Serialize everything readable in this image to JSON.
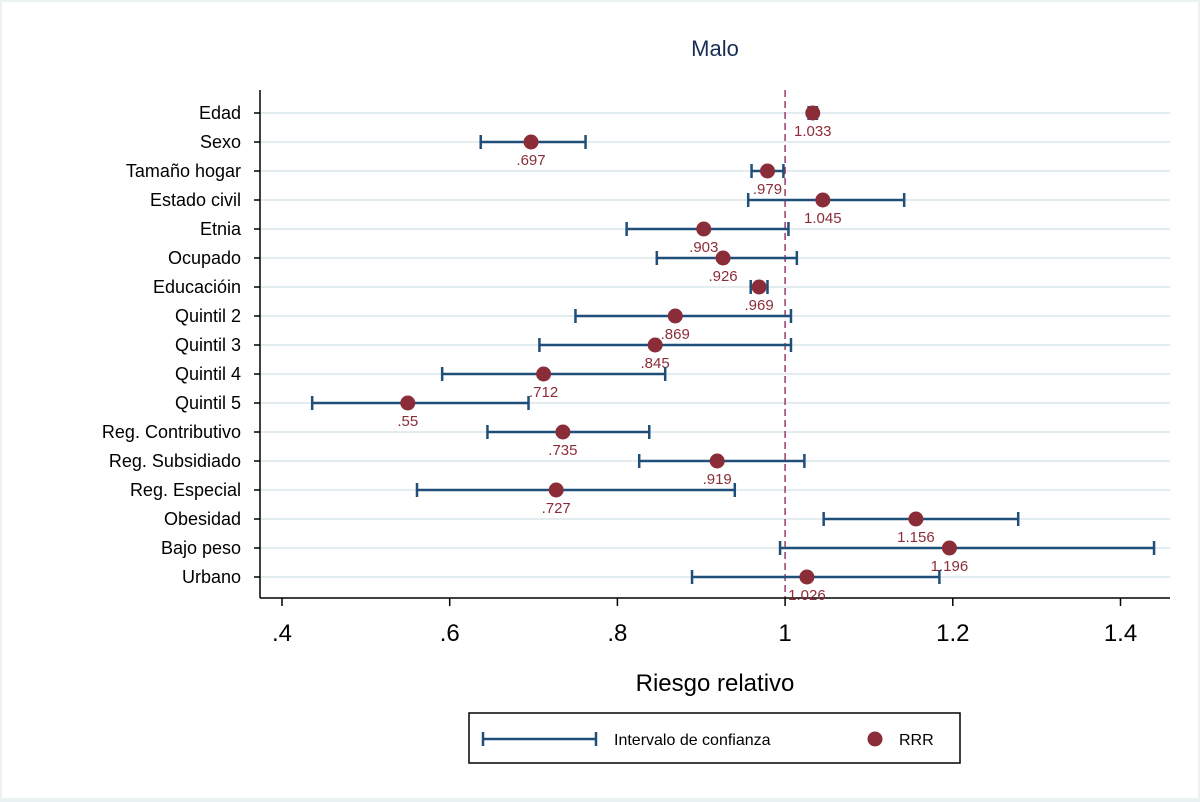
{
  "chart_data": {
    "type": "scatter",
    "title": "Malo",
    "xlabel": "Riesgo relativo",
    "ylabel": "",
    "xlim": [
      0.39,
      1.45
    ],
    "xticks": [
      0.4,
      0.6,
      0.8,
      1.0,
      1.2,
      1.4
    ],
    "xtick_labels": [
      ".4",
      ".6",
      ".8",
      "1",
      "1.2",
      "1.4"
    ],
    "reference_line": 1,
    "grid": "horizontal",
    "legend_position": "bottom",
    "legend": [
      "Intervalo de confianza",
      "RRR"
    ],
    "colors": {
      "ci": "#1f4e79",
      "point": "#8b2d38",
      "reference": "#9b3a6e",
      "grid": "#e3ecee",
      "title": "#1a2e55"
    },
    "rows": [
      {
        "label": "Edad",
        "rrr": 1.033,
        "rrr_label": "1.033",
        "ci": [
          1.028,
          1.038
        ]
      },
      {
        "label": "Sexo",
        "rrr": 0.697,
        "rrr_label": ".697",
        "ci": [
          0.637,
          0.762
        ]
      },
      {
        "label": "Tamaño hogar",
        "rrr": 0.979,
        "rrr_label": ".979",
        "ci": [
          0.96,
          0.998
        ]
      },
      {
        "label": "Estado civil",
        "rrr": 1.045,
        "rrr_label": "1.045",
        "ci": [
          0.956,
          1.142
        ]
      },
      {
        "label": "Etnia",
        "rrr": 0.903,
        "rrr_label": ".903",
        "ci": [
          0.811,
          1.004
        ]
      },
      {
        "label": "Ocupado",
        "rrr": 0.926,
        "rrr_label": ".926",
        "ci": [
          0.847,
          1.014
        ]
      },
      {
        "label": "Educacióin",
        "rrr": 0.969,
        "rrr_label": ".969",
        "ci": [
          0.959,
          0.979
        ]
      },
      {
        "label": "Quintil 2",
        "rrr": 0.869,
        "rrr_label": ".869",
        "ci": [
          0.75,
          1.007
        ]
      },
      {
        "label": "Quintil 3",
        "rrr": 0.845,
        "rrr_label": ".845",
        "ci": [
          0.707,
          1.007
        ]
      },
      {
        "label": "Quintil 4",
        "rrr": 0.712,
        "rrr_label": ".712",
        "ci": [
          0.591,
          0.857
        ]
      },
      {
        "label": "Quintil 5",
        "rrr": 0.55,
        "rrr_label": ".55",
        "ci": [
          0.436,
          0.694
        ]
      },
      {
        "label": "Reg. Contributivo",
        "rrr": 0.735,
        "rrr_label": ".735",
        "ci": [
          0.645,
          0.838
        ]
      },
      {
        "label": "Reg. Subsidiado",
        "rrr": 0.919,
        "rrr_label": ".919",
        "ci": [
          0.826,
          1.023
        ]
      },
      {
        "label": "Reg. Especial",
        "rrr": 0.727,
        "rrr_label": ".727",
        "ci": [
          0.561,
          0.94
        ]
      },
      {
        "label": "Obesidad",
        "rrr": 1.156,
        "rrr_label": "1.156",
        "ci": [
          1.046,
          1.278
        ]
      },
      {
        "label": "Bajo peso",
        "rrr": 1.196,
        "rrr_label": "1.196",
        "ci": [
          0.994,
          1.44
        ]
      },
      {
        "label": "Urbano",
        "rrr": 1.026,
        "rrr_label": "1.026",
        "ci": [
          0.889,
          1.184
        ]
      }
    ]
  }
}
